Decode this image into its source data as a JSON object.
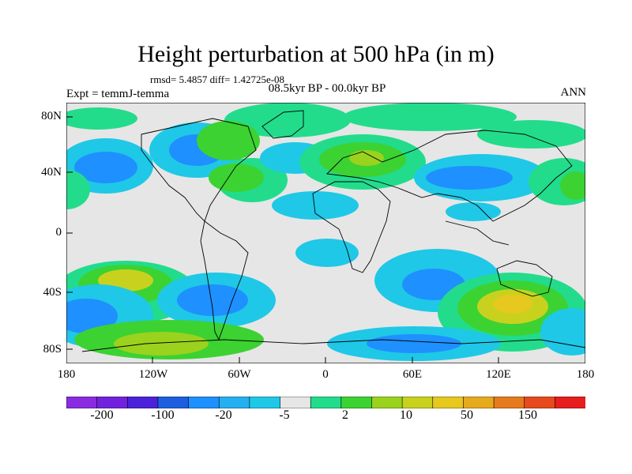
{
  "title": "Height perturbation at 500 hPa (in m)",
  "stats": "rmsd= 5.4857 diff= 1.42725e-08",
  "experiment": "Expt = temmJ-temma",
  "period": "08.5kyr BP - 00.0kyr BP",
  "season": "ANN",
  "lat_ticks": [
    "80N",
    "40N",
    "0",
    "40S",
    "80S"
  ],
  "lon_ticks": [
    "180",
    "120W",
    "60W",
    "0",
    "60E",
    "120E",
    "180"
  ],
  "colorbar": {
    "colors": [
      "#8a2be2",
      "#7222dc",
      "#4b22d9",
      "#1e5fe0",
      "#1e90ff",
      "#24b0f0",
      "#1fc8e6",
      "#e6e6e6",
      "#22dc8c",
      "#3cd232",
      "#9ad21e",
      "#c8d21e",
      "#e6c81e",
      "#e6aa1e",
      "#e67a1e",
      "#e64a1e",
      "#e61e1e"
    ],
    "labels": [
      "-200",
      "-100",
      "-20",
      "-5",
      "2",
      "10",
      "50",
      "150"
    ]
  },
  "palette": {
    "neutral": "#e6e6e6",
    "ocean_land_outline": "#000000"
  }
}
